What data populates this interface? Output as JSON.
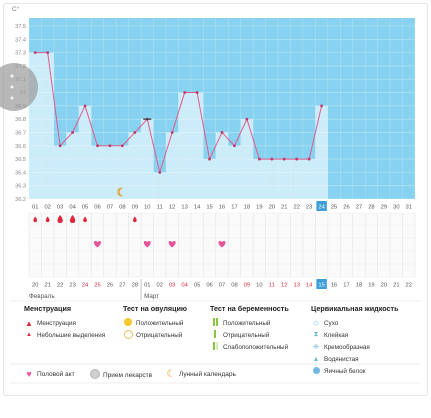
{
  "chart": {
    "y_unit": "C°",
    "y_ticks": [
      "37.5",
      "37.4",
      "37.3",
      "37.2",
      "37.1",
      "37",
      "36.9",
      "36.8",
      "36.7",
      "36.6",
      "36.5",
      "36.4",
      "36.3",
      "36.2"
    ],
    "days": [
      "01",
      "02",
      "03",
      "04",
      "05",
      "06",
      "07",
      "08",
      "09",
      "10",
      "11",
      "12",
      "13",
      "14",
      "15",
      "16",
      "17",
      "18",
      "19",
      "20",
      "21",
      "22",
      "23",
      "24",
      "25",
      "26",
      "27",
      "28",
      "29",
      "30",
      "31"
    ],
    "current_day": "24"
  },
  "chart_data": {
    "type": "area",
    "title": "",
    "ylabel": "C°",
    "ylim": [
      36.2,
      37.5
    ],
    "x": [
      "01",
      "02",
      "03",
      "04",
      "05",
      "06",
      "07",
      "08",
      "09",
      "10",
      "11",
      "12",
      "13",
      "14",
      "15",
      "16",
      "17",
      "18",
      "19",
      "20",
      "21",
      "22",
      "23",
      "24"
    ],
    "series": [
      {
        "values": [
          37.3,
          37.3,
          36.6,
          36.7,
          36.9,
          36.6,
          36.6,
          36.6,
          36.7,
          36.8,
          36.4,
          36.7,
          37.0,
          37.0,
          36.5,
          36.7,
          36.6,
          36.8,
          36.5,
          36.5,
          36.5,
          36.5,
          36.5,
          36.9
        ]
      }
    ],
    "grid": true
  },
  "calendar": {
    "dates": [
      "20",
      "21",
      "22",
      "23",
      "24",
      "25",
      "26",
      "27",
      "28",
      "01",
      "02",
      "03",
      "04",
      "05",
      "06",
      "07",
      "08",
      "09",
      "10",
      "11",
      "12",
      "13",
      "14",
      "15",
      "16",
      "17",
      "18",
      "19",
      "20",
      "21",
      "22"
    ],
    "red_date_indexes": [
      4,
      5,
      11,
      12,
      17,
      19,
      20,
      21,
      22,
      23
    ],
    "highlight_date_index": 24,
    "month_feb": "Февраль",
    "month_mar": "Март",
    "menstruation_days": [
      {
        "day": 0,
        "kind": "small"
      },
      {
        "day": 1,
        "kind": "small"
      },
      {
        "day": 2,
        "kind": "big"
      },
      {
        "day": 3,
        "kind": "big"
      },
      {
        "day": 4,
        "kind": "small"
      },
      {
        "day": 8,
        "kind": "small"
      }
    ],
    "intercourse_days": [
      5,
      9,
      11,
      15
    ]
  },
  "colors": {
    "chart_bg": "#87d2f0",
    "bar_fill": "#ccecf9",
    "line": "#e25a8a",
    "point": "#c4386a",
    "red": "#e0263a",
    "heart": "#e8549a",
    "highlight": "#3d9fd6",
    "moon": "#e5961c"
  },
  "legend": {
    "groups": [
      {
        "title": "Менструация",
        "items": [
          {
            "icon": "drop-icon",
            "label": "Менструация"
          },
          {
            "icon": "small-drop-icon",
            "label": "Небольшие выделения"
          }
        ]
      },
      {
        "title": "Тест на овуляцию",
        "items": [
          {
            "icon": "yellow-circle-icon",
            "label": "Положительный"
          },
          {
            "icon": "empty-circle-icon",
            "label": "Отрицательный"
          }
        ]
      },
      {
        "title": "Тест на беременность",
        "items": [
          {
            "icon": "double-bar-icon",
            "label": "Положительный"
          },
          {
            "icon": "single-bar-icon",
            "label": "Отрицательный"
          },
          {
            "icon": "faint-bar-icon",
            "label": "Слабоположительный"
          }
        ]
      },
      {
        "title": "Цервикальная жидкость",
        "items": [
          {
            "icon": "dry-icon",
            "label": "Сухо"
          },
          {
            "icon": "sticky-icon",
            "label": "Клейкая"
          },
          {
            "icon": "creamy-icon",
            "label": "Кремообразная"
          },
          {
            "icon": "watery-icon",
            "label": "Водянистая"
          },
          {
            "icon": "egg-white-icon",
            "label": "Яичный белок"
          }
        ]
      }
    ],
    "bottom": [
      {
        "icon": "heart-icon",
        "label": "Половой акт"
      },
      {
        "icon": "pill-icon",
        "label": "Прием лекарств"
      },
      {
        "icon": "moon-icon",
        "label": "Лунный календарь"
      }
    ]
  }
}
